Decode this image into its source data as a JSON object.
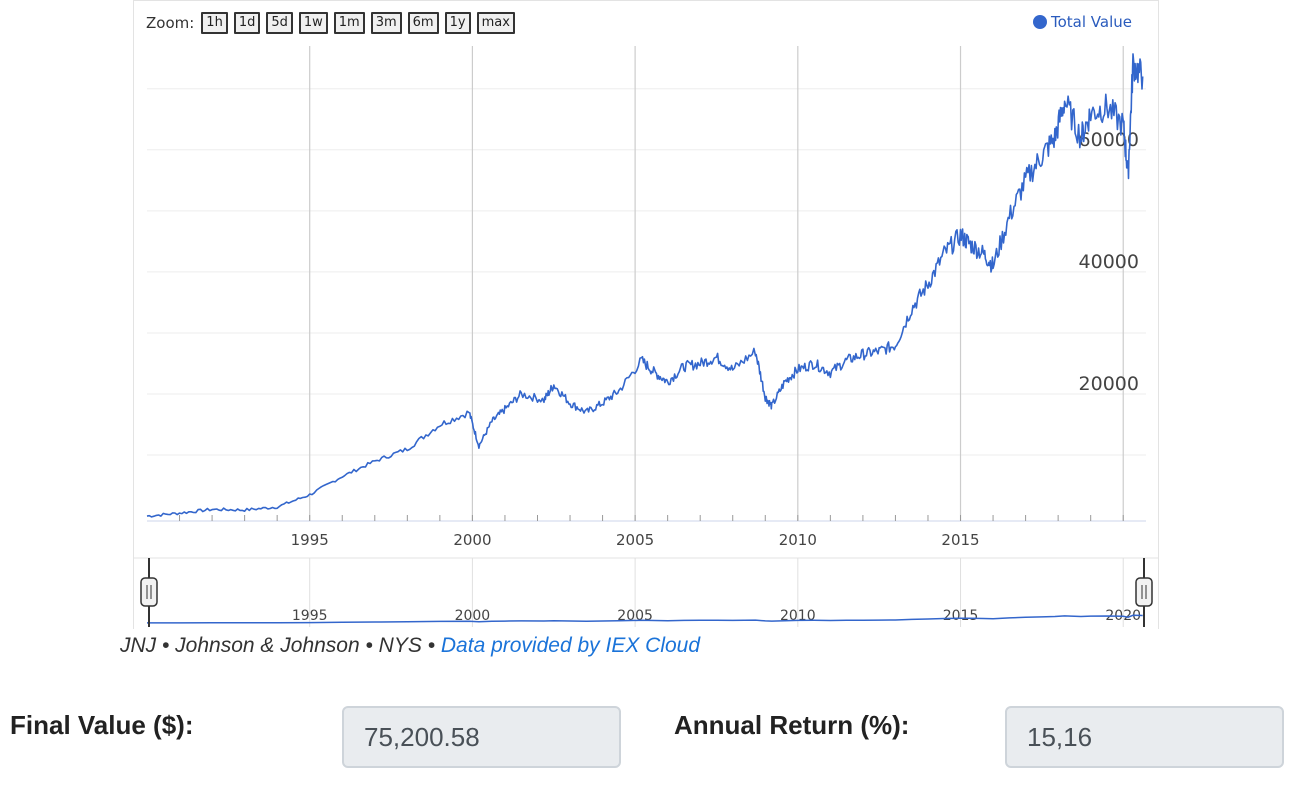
{
  "zoom": {
    "label": "Zoom:",
    "buttons": [
      "1h",
      "1d",
      "5d",
      "1w",
      "1m",
      "3m",
      "6m",
      "1y",
      "max"
    ]
  },
  "legend": {
    "label": "Total Value",
    "color": "#3366cc"
  },
  "colors": {
    "line": "#3366cc",
    "grid": "#eeeeee",
    "vgrid": "#cccccc",
    "link": "#1a73d9"
  },
  "chart_data": {
    "type": "line",
    "series": [
      {
        "name": "Total Value",
        "x": [
          1990.0,
          1991.0,
          1992.0,
          1993.0,
          1994.0,
          1995.0,
          1996.0,
          1997.0,
          1998.0,
          1999.0,
          1999.9,
          2000.2,
          2000.6,
          2001.0,
          2001.5,
          2002.2,
          2002.5,
          2003.0,
          2003.5,
          2004.0,
          2004.5,
          2005.2,
          2005.6,
          2006.0,
          2006.5,
          2007.0,
          2007.5,
          2008.0,
          2008.7,
          2009.0,
          2009.2,
          2009.6,
          2010.0,
          2010.5,
          2011.0,
          2011.5,
          2012.0,
          2012.5,
          2013.0,
          2013.5,
          2014.0,
          2014.5,
          2015.0,
          2015.3,
          2015.7,
          2016.0,
          2016.5,
          2017.0,
          2017.5,
          2017.9,
          2018.2,
          2018.7,
          2019.0,
          2019.5,
          2020.0,
          2020.15,
          2020.3,
          2020.6
        ],
        "y": [
          0,
          500,
          1100,
          1000,
          1500,
          3500,
          6500,
          9000,
          11000,
          15000,
          17000,
          11500,
          15500,
          17500,
          20000,
          19000,
          21500,
          18500,
          17000,
          18500,
          20500,
          25500,
          23500,
          22000,
          24500,
          25000,
          26000,
          24000,
          27000,
          19500,
          18000,
          22000,
          24000,
          25000,
          23500,
          25500,
          26500,
          27000,
          28000,
          34000,
          38000,
          43000,
          46000,
          44500,
          43000,
          41000,
          49000,
          55000,
          59000,
          62000,
          68000,
          62000,
          66000,
          67000,
          64000,
          56000,
          74000,
          72000
        ]
      }
    ],
    "ylim": [
      -800,
      77000
    ],
    "xlim": [
      1990.0,
      2020.7
    ],
    "yticks": [
      "20000",
      "40000",
      "60000"
    ],
    "xticks": [
      "1995",
      "2000",
      "2005",
      "2010",
      "2015"
    ],
    "navigator_ticks": [
      "1995",
      "2000",
      "2005",
      "2010",
      "2015",
      "2020"
    ],
    "grid": true,
    "legend_position": "top-right"
  },
  "caption": {
    "prefix": "JNJ • Johnson & Johnson • NYS •",
    "link": "Data provided by IEX Cloud"
  },
  "results": {
    "final_value_label": "Final Value ($):",
    "final_value": "75,200.58",
    "annual_return_label": "Annual Return (%):",
    "annual_return": "15,16"
  }
}
